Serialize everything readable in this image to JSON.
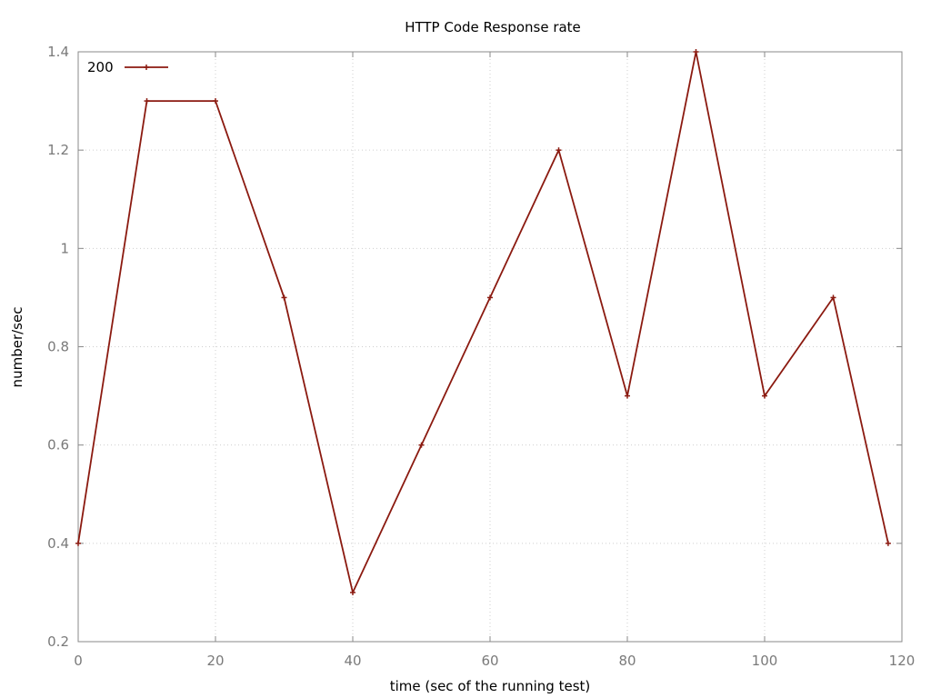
{
  "chart_data": {
    "type": "line",
    "title": "HTTP Code Response rate",
    "xlabel": "time (sec of the running test)",
    "ylabel": "number/sec",
    "xlim": [
      0,
      120
    ],
    "ylim": [
      0.2,
      1.4
    ],
    "xticks": [
      0,
      20,
      40,
      60,
      80,
      100,
      120
    ],
    "yticks": [
      0.2,
      0.4,
      0.6,
      0.8,
      1,
      1.2,
      1.4
    ],
    "xtick_labels": [
      "0",
      "20",
      "40",
      "60",
      "80",
      "100",
      "120"
    ],
    "ytick_labels": [
      "0.2",
      "0.4",
      "0.6",
      "0.8",
      "1",
      "1.2",
      "1.4"
    ],
    "grid": true,
    "legend_position": "top-left",
    "x": [
      0,
      10,
      20,
      30,
      40,
      50,
      60,
      70,
      80,
      90,
      100,
      110,
      118
    ],
    "series": [
      {
        "name": "200",
        "color": "#8b1a10",
        "marker": "plus",
        "values": [
          0.4,
          1.3,
          1.3,
          0.9,
          0.3,
          0.6,
          0.9,
          1.2,
          0.7,
          1.4,
          0.7,
          0.9,
          0.4
        ]
      }
    ]
  }
}
